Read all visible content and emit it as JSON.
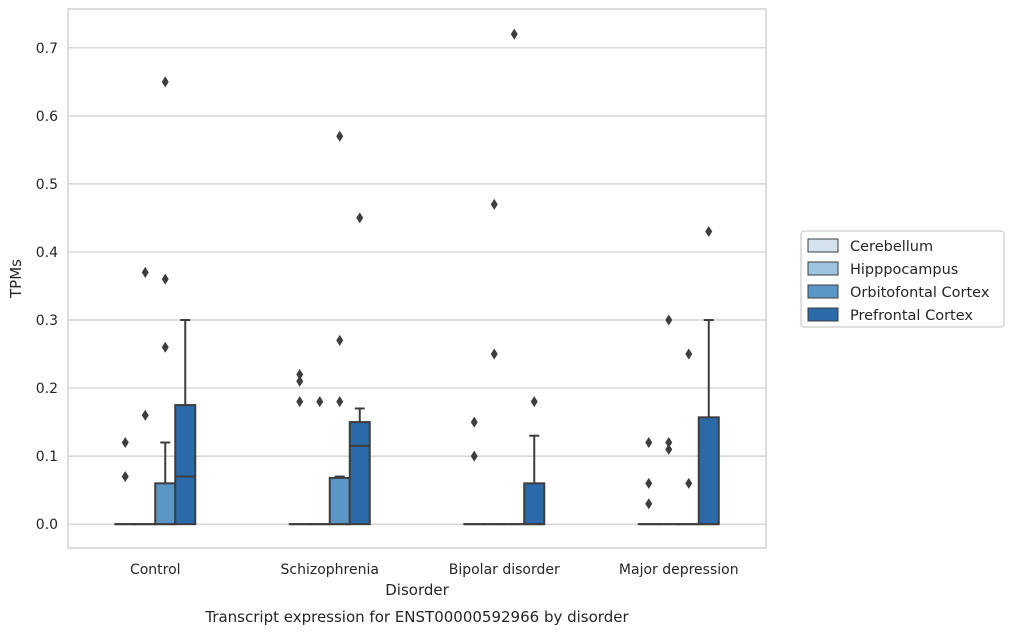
{
  "chart_data": {
    "type": "box",
    "title": "",
    "caption": "Transcript expression for ENST00000592966 by disorder",
    "xlabel": "Disorder",
    "ylabel": "TPMs",
    "ylim": [
      -0.035,
      0.757
    ],
    "yticks": [
      0.0,
      0.1,
      0.2,
      0.3,
      0.4,
      0.5,
      0.6,
      0.7
    ],
    "ytick_labels": [
      "0.0",
      "0.1",
      "0.2",
      "0.3",
      "0.4",
      "0.5",
      "0.6",
      "0.7"
    ],
    "grid": "horizontal",
    "legend_position": "right",
    "categories": [
      "Control",
      "Schizophrenia",
      "Bipolar disorder",
      "Major depression"
    ],
    "series": [
      {
        "name": "Cerebellum",
        "color": "#d4e2f0",
        "boxes": [
          {
            "q1": 0,
            "median": 0,
            "q3": 0,
            "whisker_low": 0,
            "whisker_high": 0,
            "outliers": [
              0.12,
              0.07
            ]
          },
          {
            "q1": 0,
            "median": 0,
            "q3": 0,
            "whisker_low": 0,
            "whisker_high": 0,
            "outliers": [
              0.22,
              0.21,
              0.18
            ]
          },
          {
            "q1": 0,
            "median": 0,
            "q3": 0,
            "whisker_low": 0,
            "whisker_high": 0,
            "outliers": [
              0.15,
              0.1
            ]
          },
          {
            "q1": 0,
            "median": 0,
            "q3": 0,
            "whisker_low": 0,
            "whisker_high": 0,
            "outliers": [
              0.12,
              0.06,
              0.03
            ]
          }
        ]
      },
      {
        "name": "Hipppocampus",
        "color": "#9dc4e0",
        "boxes": [
          {
            "q1": 0,
            "median": 0,
            "q3": 0,
            "whisker_low": 0,
            "whisker_high": 0,
            "outliers": [
              0.37,
              0.16
            ]
          },
          {
            "q1": 0,
            "median": 0,
            "q3": 0,
            "whisker_low": 0,
            "whisker_high": 0,
            "outliers": [
              0.18
            ]
          },
          {
            "q1": 0,
            "median": 0,
            "q3": 0,
            "whisker_low": 0,
            "whisker_high": 0,
            "outliers": [
              0.47,
              0.25
            ]
          },
          {
            "q1": 0,
            "median": 0,
            "q3": 0,
            "whisker_low": 0,
            "whisker_high": 0,
            "outliers": [
              0.3,
              0.12,
              0.11
            ]
          }
        ]
      },
      {
        "name": "Orbitofontal Cortex",
        "color": "#5a97c6",
        "boxes": [
          {
            "q1": 0,
            "median": 0,
            "q3": 0.06,
            "whisker_low": 0,
            "whisker_high": 0.12,
            "outliers": [
              0.65,
              0.36,
              0.26
            ]
          },
          {
            "q1": 0,
            "median": 0,
            "q3": 0.068,
            "whisker_low": 0,
            "whisker_high": 0.07,
            "outliers": [
              0.57,
              0.27,
              0.18
            ]
          },
          {
            "q1": 0,
            "median": 0,
            "q3": 0,
            "whisker_low": 0,
            "whisker_high": 0,
            "outliers": [
              0.72
            ]
          },
          {
            "q1": 0,
            "median": 0,
            "q3": 0,
            "whisker_low": 0,
            "whisker_high": 0,
            "outliers": [
              0.25,
              0.06
            ]
          }
        ]
      },
      {
        "name": "Prefrontal Cortex",
        "color": "#2b6aa8",
        "boxes": [
          {
            "q1": 0,
            "median": 0.07,
            "q3": 0.175,
            "whisker_low": 0,
            "whisker_high": 0.3,
            "outliers": []
          },
          {
            "q1": 0,
            "median": 0.115,
            "q3": 0.15,
            "whisker_low": 0,
            "whisker_high": 0.17,
            "outliers": [
              0.45
            ]
          },
          {
            "q1": 0,
            "median": 0,
            "q3": 0.06,
            "whisker_low": 0,
            "whisker_high": 0.13,
            "outliers": [
              0.18
            ]
          },
          {
            "q1": 0,
            "median": 0,
            "q3": 0.157,
            "whisker_low": 0,
            "whisker_high": 0.3,
            "outliers": [
              0.43
            ]
          }
        ]
      }
    ]
  }
}
